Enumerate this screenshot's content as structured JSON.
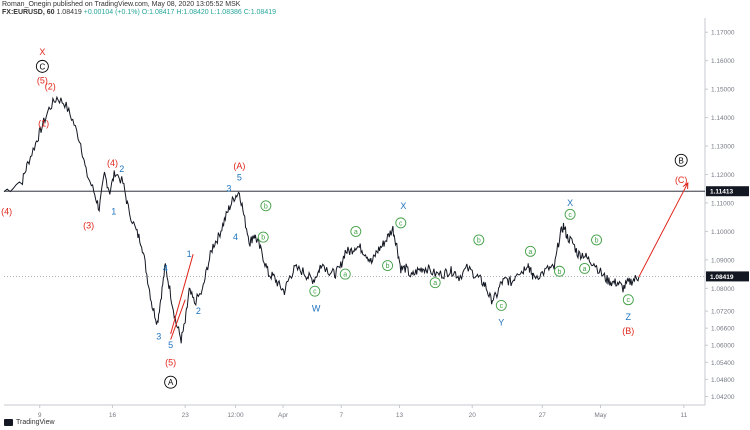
{
  "header": {
    "line1": "Roman_Onegin published on TradingView.com, May 08, 2020 13:05:52 MSK",
    "symbol": "FX:EURUSD, 60",
    "last": "1.08419",
    "change": "+0.00104 (+0.1%)",
    "ohlc": "O:1.08417 H:1.08420 L:1.08386 C:1.08419"
  },
  "footer": {
    "brand": "TradingView"
  },
  "colors": {
    "candle": "#131722",
    "red": "#e0251b",
    "blue": "#1e73be",
    "green": "#43a047",
    "axis": "#787b86",
    "black": "#000000"
  },
  "chart_data": {
    "type": "line",
    "title": "FX:EURUSD, 60",
    "y_axis_ticks": [
      "1.17000",
      "1.16000",
      "1.15000",
      "1.14000",
      "1.13000",
      "1.12000",
      "1.11000",
      "1.10000",
      "1.09000",
      "1.08000",
      "1.07200",
      "1.06600",
      "1.06000",
      "1.05400",
      "1.04800",
      "1.04200"
    ],
    "ylim": [
      1.039,
      1.175
    ],
    "x_ticks": [
      "9",
      "16",
      "23",
      "12:00",
      "Apr",
      "7",
      "13",
      "20",
      "27",
      "May",
      "11"
    ],
    "horizontal_lines": [
      {
        "value": 1.11413,
        "label": "1.11413",
        "style": "solid"
      },
      {
        "value": 1.08419,
        "label": "1.08419",
        "style": "dotted"
      }
    ],
    "series": [
      {
        "values": [
          [
            0,
            1.114
          ],
          [
            0.7,
            1.118
          ],
          [
            0.9,
            1.124
          ],
          [
            1.2,
            1.131
          ],
          [
            1.4,
            1.136
          ],
          [
            1.7,
            1.143
          ],
          [
            2,
            1.147
          ],
          [
            2.3,
            1.145
          ],
          [
            2.6,
            1.139
          ],
          [
            2.9,
            1.131
          ],
          [
            3.1,
            1.121
          ],
          [
            3.4,
            1.114
          ],
          [
            3.6,
            1.108
          ],
          [
            3.8,
            1.12
          ],
          [
            4,
            1.114
          ],
          [
            4.2,
            1.121
          ],
          [
            4.5,
            1.117
          ],
          [
            4.7,
            1.108
          ],
          [
            5,
            1.1
          ],
          [
            5.2,
            1.096
          ],
          [
            5.4,
            1.085
          ],
          [
            5.6,
            1.074
          ],
          [
            5.8,
            1.068
          ],
          [
            5.95,
            1.078
          ],
          [
            6.1,
            1.088
          ],
          [
            6.3,
            1.078
          ],
          [
            6.5,
            1.068
          ],
          [
            6.7,
            1.062
          ],
          [
            6.85,
            1.068
          ],
          [
            7,
            1.079
          ],
          [
            7.2,
            1.075
          ],
          [
            7.5,
            1.079
          ],
          [
            7.7,
            1.088
          ],
          [
            7.9,
            1.095
          ],
          [
            8.1,
            1.098
          ],
          [
            8.3,
            1.103
          ],
          [
            8.5,
            1.108
          ],
          [
            8.7,
            1.112
          ],
          [
            8.9,
            1.114
          ],
          [
            9.1,
            1.104
          ],
          [
            9.3,
            1.096
          ],
          [
            9.45,
            1.099
          ],
          [
            9.6,
            1.096
          ],
          [
            9.8,
            1.091
          ],
          [
            10,
            1.085
          ],
          [
            10.2,
            1.084
          ],
          [
            10.4,
            1.081
          ],
          [
            10.6,
            1.079
          ],
          [
            10.8,
            1.084
          ],
          [
            11,
            1.087
          ],
          [
            11.3,
            1.086
          ],
          [
            11.5,
            1.084
          ],
          [
            11.7,
            1.083
          ],
          [
            11.9,
            1.086
          ],
          [
            12,
            1.089
          ],
          [
            12.3,
            1.086
          ],
          [
            12.5,
            1.085
          ],
          [
            12.7,
            1.087
          ],
          [
            12.9,
            1.093
          ],
          [
            13.1,
            1.093
          ],
          [
            13.3,
            1.095
          ],
          [
            13.5,
            1.094
          ],
          [
            13.7,
            1.092
          ],
          [
            13.9,
            1.089
          ],
          [
            14.1,
            1.093
          ],
          [
            14.3,
            1.095
          ],
          [
            14.5,
            1.098
          ],
          [
            14.7,
            1.101
          ],
          [
            14.85,
            1.095
          ],
          [
            15,
            1.087
          ],
          [
            15.2,
            1.087
          ],
          [
            15.4,
            1.084
          ],
          [
            15.6,
            1.086
          ],
          [
            15.8,
            1.087
          ],
          [
            16,
            1.087
          ],
          [
            16.3,
            1.085
          ],
          [
            16.6,
            1.085
          ],
          [
            16.8,
            1.086
          ],
          [
            17,
            1.086
          ],
          [
            17.2,
            1.084
          ],
          [
            17.5,
            1.087
          ],
          [
            17.8,
            1.085
          ],
          [
            18,
            1.083
          ],
          [
            18.2,
            1.081
          ],
          [
            18.4,
            1.076
          ],
          [
            18.6,
            1.077
          ],
          [
            18.8,
            1.082
          ],
          [
            19,
            1.083
          ],
          [
            19.2,
            1.082
          ],
          [
            19.4,
            1.086
          ],
          [
            19.6,
            1.086
          ],
          [
            19.8,
            1.089
          ],
          [
            19.9,
            1.086
          ],
          [
            20,
            1.084
          ],
          [
            20.3,
            1.085
          ],
          [
            20.6,
            1.087
          ],
          [
            20.8,
            1.087
          ],
          [
            21,
            1.098
          ],
          [
            21.15,
            1.102
          ],
          [
            21.3,
            1.098
          ],
          [
            21.5,
            1.096
          ],
          [
            21.7,
            1.092
          ],
          [
            21.9,
            1.092
          ],
          [
            22.1,
            1.09
          ],
          [
            22.3,
            1.089
          ],
          [
            22.6,
            1.085
          ],
          [
            22.8,
            1.083
          ],
          [
            23,
            1.082
          ],
          [
            23.2,
            1.082
          ],
          [
            23.4,
            1.08
          ],
          [
            23.6,
            1.082
          ],
          [
            23.8,
            1.083
          ],
          [
            24,
            1.084
          ]
        ]
      }
    ],
    "wave_labels": [
      {
        "text": "X",
        "color": "red",
        "t": 1.45,
        "v": 1.163,
        "style": "plain"
      },
      {
        "text": "C",
        "color": "black",
        "t": 1.45,
        "v": 1.158,
        "style": "circle"
      },
      {
        "text": "(5)",
        "color": "red",
        "t": 1.45,
        "v": 1.153,
        "style": "plain"
      },
      {
        "text": "(2)",
        "color": "red",
        "t": 1.75,
        "v": 1.151,
        "style": "plain"
      },
      {
        "text": "(1)",
        "color": "red",
        "t": 1.5,
        "v": 1.138,
        "style": "plain"
      },
      {
        "text": "(4)",
        "color": "red",
        "t": 4.1,
        "v": 1.124,
        "style": "plain"
      },
      {
        "text": "2",
        "color": "blue",
        "t": 4.45,
        "v": 1.122,
        "style": "plain"
      },
      {
        "text": "1",
        "color": "blue",
        "t": 4.15,
        "v": 1.107,
        "style": "plain"
      },
      {
        "text": "(3)",
        "color": "red",
        "t": 3.2,
        "v": 1.102,
        "style": "plain"
      },
      {
        "text": "(4)",
        "color": "red",
        "t": 0.1,
        "v": 1.107,
        "style": "plain"
      },
      {
        "text": "4",
        "color": "blue",
        "t": 6.1,
        "v": 1.087,
        "style": "plain"
      },
      {
        "text": "3",
        "color": "blue",
        "t": 5.85,
        "v": 1.063,
        "style": "plain"
      },
      {
        "text": "5",
        "color": "blue",
        "t": 6.3,
        "v": 1.06,
        "style": "plain"
      },
      {
        "text": "(5)",
        "color": "red",
        "t": 6.3,
        "v": 1.054,
        "style": "plain"
      },
      {
        "text": "A",
        "color": "black",
        "t": 6.3,
        "v": 1.047,
        "style": "circle"
      },
      {
        "text": "1",
        "color": "blue",
        "t": 7.0,
        "v": 1.092,
        "style": "plain"
      },
      {
        "text": "2",
        "color": "blue",
        "t": 7.35,
        "v": 1.072,
        "style": "plain"
      },
      {
        "text": "(A)",
        "color": "red",
        "t": 8.9,
        "v": 1.123,
        "style": "plain"
      },
      {
        "text": "5",
        "color": "blue",
        "t": 8.9,
        "v": 1.119,
        "style": "plain"
      },
      {
        "text": "3",
        "color": "blue",
        "t": 8.5,
        "v": 1.115,
        "style": "plain"
      },
      {
        "text": "4",
        "color": "blue",
        "t": 8.75,
        "v": 1.098,
        "style": "plain"
      },
      {
        "text": "b",
        "color": "green",
        "t": 9.9,
        "v": 1.109,
        "style": "circle"
      },
      {
        "text": "b",
        "color": "green",
        "t": 9.8,
        "v": 1.098,
        "style": "circle"
      },
      {
        "text": "c",
        "color": "green",
        "t": 11.75,
        "v": 1.079,
        "style": "circle"
      },
      {
        "text": "W",
        "color": "blue",
        "t": 11.8,
        "v": 1.073,
        "style": "plain"
      },
      {
        "text": "a",
        "color": "green",
        "t": 13.3,
        "v": 1.1,
        "style": "circle"
      },
      {
        "text": "a",
        "color": "green",
        "t": 12.9,
        "v": 1.085,
        "style": "circle"
      },
      {
        "text": "b",
        "color": "green",
        "t": 14.5,
        "v": 1.088,
        "style": "circle"
      },
      {
        "text": "X",
        "color": "blue",
        "t": 15.1,
        "v": 1.109,
        "style": "plain"
      },
      {
        "text": "c",
        "color": "green",
        "t": 15.0,
        "v": 1.103,
        "style": "circle"
      },
      {
        "text": "a",
        "color": "green",
        "t": 16.3,
        "v": 1.082,
        "style": "circle"
      },
      {
        "text": "b",
        "color": "green",
        "t": 17.95,
        "v": 1.097,
        "style": "circle"
      },
      {
        "text": "c",
        "color": "green",
        "t": 18.8,
        "v": 1.074,
        "style": "circle"
      },
      {
        "text": "Y",
        "color": "blue",
        "t": 18.8,
        "v": 1.068,
        "style": "plain"
      },
      {
        "text": "a",
        "color": "green",
        "t": 19.9,
        "v": 1.093,
        "style": "circle"
      },
      {
        "text": "b",
        "color": "green",
        "t": 21.0,
        "v": 1.086,
        "style": "circle"
      },
      {
        "text": "X",
        "color": "blue",
        "t": 21.4,
        "v": 1.11,
        "style": "plain"
      },
      {
        "text": "c",
        "color": "green",
        "t": 21.4,
        "v": 1.106,
        "style": "circle"
      },
      {
        "text": "b",
        "color": "green",
        "t": 22.4,
        "v": 1.097,
        "style": "circle"
      },
      {
        "text": "a",
        "color": "green",
        "t": 21.95,
        "v": 1.087,
        "style": "circle"
      },
      {
        "text": "c",
        "color": "green",
        "t": 23.6,
        "v": 1.076,
        "style": "circle"
      },
      {
        "text": "Z",
        "color": "blue",
        "t": 23.6,
        "v": 1.07,
        "style": "plain"
      },
      {
        "text": "(B)",
        "color": "red",
        "t": 23.6,
        "v": 1.065,
        "style": "plain"
      },
      {
        "text": "B",
        "color": "black",
        "t": 25.6,
        "v": 1.125,
        "style": "circle"
      },
      {
        "text": "(C)",
        "color": "red",
        "t": 25.6,
        "v": 1.118,
        "style": "plain"
      }
    ],
    "projection_arrow": {
      "from": [
        24,
        1.084
      ],
      "to": [
        25.85,
        1.117
      ],
      "color": "red"
    },
    "wedge_lines": [
      {
        "from": [
          6.3,
          1.064
        ],
        "to": [
          7.15,
          1.092
        ]
      },
      {
        "from": [
          6.3,
          1.062
        ],
        "to": [
          6.85,
          1.076
        ]
      }
    ]
  }
}
